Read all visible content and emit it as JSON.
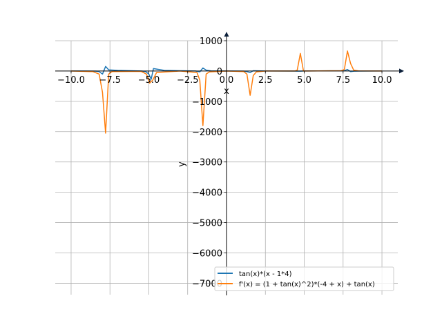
{
  "chart_data": {
    "type": "line",
    "title": "",
    "xlabel": "x",
    "ylabel": "y",
    "xlim": [
      -11.02,
      11.02
    ],
    "ylim": [
      -7400,
      1250
    ],
    "grid": true,
    "legend_position": "bottom-right",
    "x_ticks": [
      -10.0,
      -7.5,
      -5.0,
      -2.5,
      0.0,
      2.5,
      5.0,
      7.5,
      10.0
    ],
    "x_tick_labels": [
      "−10.0",
      "−7.5",
      "−5.0",
      "−2.5",
      "0.0",
      "2.5",
      "5.0",
      "7.5",
      "10.0"
    ],
    "y_ticks": [
      1000,
      0,
      -1000,
      -2000,
      -3000,
      -4000,
      -5000,
      -6000,
      -7000
    ],
    "y_tick_labels": [
      "1000",
      "0",
      "−1000",
      "−2000",
      "−3000",
      "−4000",
      "−5000",
      "−6000",
      "−7000"
    ],
    "series": [
      {
        "name": "tan(x)*(x - 1*4)",
        "color": "#1f77b4",
        "points": [
          [
            -10,
            0
          ],
          [
            -8.4,
            -5
          ],
          [
            -8.2,
            -20
          ],
          [
            -7.98,
            -100
          ],
          [
            -7.78,
            150
          ],
          [
            -7.58,
            40
          ],
          [
            -7,
            20
          ],
          [
            -5.5,
            0
          ],
          [
            -5.2,
            -20
          ],
          [
            -5.0,
            -100
          ],
          [
            -4.85,
            -270
          ],
          [
            -4.7,
            80
          ],
          [
            -4,
            20
          ],
          [
            -2,
            0
          ],
          [
            -1.72,
            -30
          ],
          [
            -1.52,
            100
          ],
          [
            -1.31,
            30
          ],
          [
            -1,
            5
          ],
          [
            0,
            0
          ],
          [
            1.1,
            -5
          ],
          [
            1.31,
            -20
          ],
          [
            1.52,
            -50
          ],
          [
            1.72,
            10
          ],
          [
            2.5,
            0
          ],
          [
            4.75,
            -5
          ],
          [
            5,
            0
          ],
          [
            7.58,
            10
          ],
          [
            7.78,
            50
          ],
          [
            7.98,
            -20
          ],
          [
            8.2,
            -5
          ],
          [
            10,
            0
          ]
        ]
      },
      {
        "name": "f'(x) = (1 + tan(x)^2)*(-4 + x) + tan(x)",
        "color": "#ff7f0e",
        "points": [
          [
            -10,
            0
          ],
          [
            -8.6,
            -20
          ],
          [
            -8.2,
            -100
          ],
          [
            -7.98,
            -700
          ],
          [
            -7.78,
            -2050
          ],
          [
            -7.58,
            -100
          ],
          [
            -7.37,
            -20
          ],
          [
            -5.5,
            -10
          ],
          [
            -5.15,
            -100
          ],
          [
            -4.95,
            -400
          ],
          [
            -4.75,
            -300
          ],
          [
            -4.5,
            -50
          ],
          [
            -3,
            0
          ],
          [
            -1.9,
            -50
          ],
          [
            -1.72,
            -300
          ],
          [
            -1.52,
            -1800
          ],
          [
            -1.31,
            -100
          ],
          [
            -1.1,
            -30
          ],
          [
            0,
            0
          ],
          [
            1.1,
            -20
          ],
          [
            1.31,
            -100
          ],
          [
            1.52,
            -800
          ],
          [
            1.72,
            -150
          ],
          [
            1.92,
            -30
          ],
          [
            2.5,
            0
          ],
          [
            4.4,
            0
          ],
          [
            4.55,
            30
          ],
          [
            4.75,
            580
          ],
          [
            4.95,
            0
          ],
          [
            5.2,
            0
          ],
          [
            7.37,
            10
          ],
          [
            7.58,
            50
          ],
          [
            7.78,
            660
          ],
          [
            7.98,
            250
          ],
          [
            8.18,
            30
          ],
          [
            8.5,
            5
          ],
          [
            10,
            0
          ]
        ]
      }
    ]
  }
}
